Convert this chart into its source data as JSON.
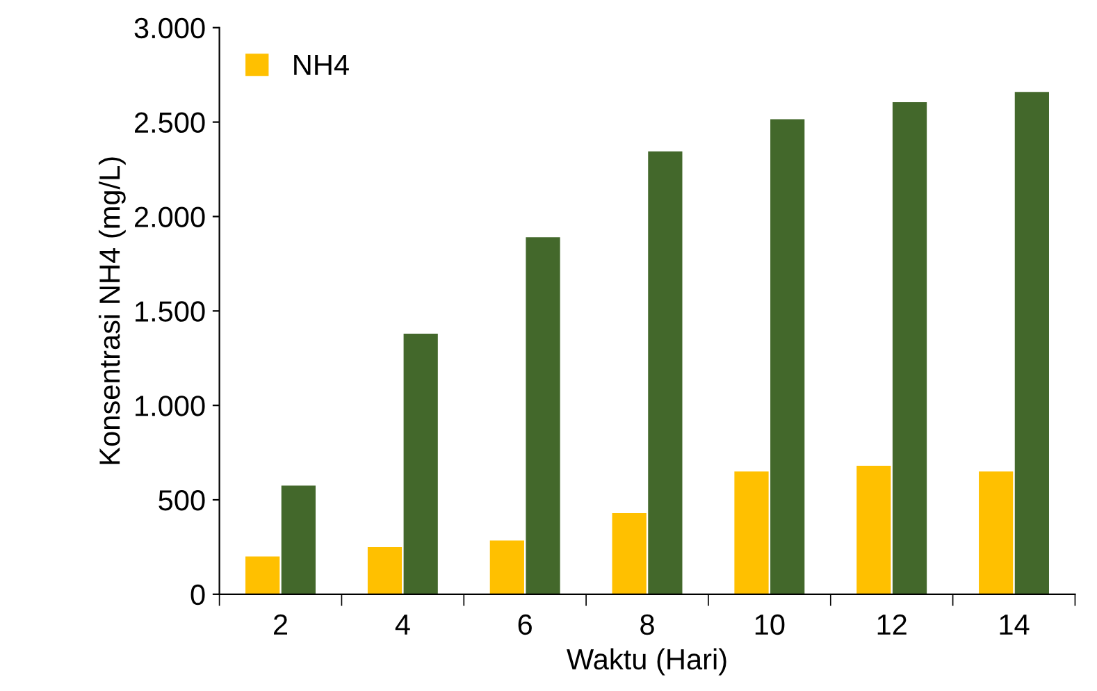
{
  "chart_data": {
    "type": "bar",
    "xlabel": "Waktu (Hari)",
    "ylabel": "Konsentrasi NH4 (mg/L)",
    "categories": [
      "2",
      "4",
      "6",
      "8",
      "10",
      "12",
      "14"
    ],
    "series": [
      {
        "name": "NH4",
        "color": "#ffc000",
        "values": [
          200,
          250,
          285,
          430,
          650,
          680,
          650
        ]
      },
      {
        "color": "#43682b",
        "values": [
          575,
          1380,
          1890,
          2345,
          2515,
          2605,
          2660
        ]
      }
    ],
    "ylim": [
      0,
      3000
    ],
    "yticks": [
      0,
      500,
      {
        "value": 1000,
        "label": "1.000"
      },
      {
        "value": 1500,
        "label": "1.500"
      },
      {
        "value": 2000,
        "label": "2.000"
      },
      {
        "value": 2500,
        "label": "2.500"
      },
      {
        "value": 3000,
        "label": "3.000"
      }
    ],
    "legend": "top left",
    "grid": false
  }
}
